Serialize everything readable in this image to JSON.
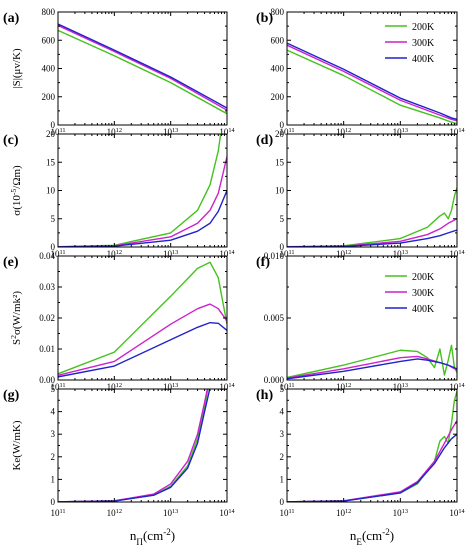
{
  "chart_data": {
    "type": "line",
    "x_scale": "log",
    "xlim": [
      100000000000.0,
      100000000000000.0
    ],
    "colors": {
      "200K": "#44c21e",
      "300K": "#cc22cc",
      "400K": "#2222cc"
    },
    "series_names": [
      "200K",
      "300K",
      "400K"
    ],
    "xlabels": {
      "left": "n_Π(cm^-2)",
      "right": "n_E(cm^-2)"
    },
    "x_ticklabels": [
      "10^11",
      "10^12",
      "10^13",
      "10^14"
    ],
    "panels": [
      {
        "label": "(a)",
        "ylabel": "|S|(μv/K)",
        "ylim": [
          0,
          800
        ],
        "yticks": [
          0,
          200,
          400,
          600,
          800
        ],
        "ytick_labels": [
          "0",
          "200",
          "400",
          "600",
          "800"
        ],
        "series": [
          {
            "name": "200K",
            "x": [
              100000000000.0,
              1000000000000.0,
              10000000000000.0,
              100000000000000.0
            ],
            "y": [
              670,
              490,
              300,
              80
            ]
          },
          {
            "name": "300K",
            "x": [
              100000000000.0,
              1000000000000.0,
              10000000000000.0,
              100000000000000.0
            ],
            "y": [
              705,
              520,
              330,
              105
            ]
          },
          {
            "name": "400K",
            "x": [
              100000000000.0,
              1000000000000.0,
              10000000000000.0,
              100000000000000.0
            ],
            "y": [
              715,
              530,
              340,
              120
            ]
          }
        ]
      },
      {
        "label": "(b)",
        "ylabel": "",
        "ylim": [
          0,
          800
        ],
        "yticks": [
          0,
          200,
          400,
          600,
          800
        ],
        "ytick_labels": [
          "0",
          "200",
          "400",
          "600",
          "800"
        ],
        "legend": "top-right",
        "series": [
          {
            "name": "200K",
            "x": [
              100000000000.0,
              1000000000000.0,
              10000000000000.0,
              50000000000000.0,
              80000000000000.0,
              100000000000000.0
            ],
            "y": [
              530,
              350,
              140,
              50,
              20,
              10
            ]
          },
          {
            "name": "300K",
            "x": [
              100000000000.0,
              1000000000000.0,
              10000000000000.0,
              50000000000000.0,
              80000000000000.0,
              100000000000000.0
            ],
            "y": [
              565,
              380,
              175,
              70,
              40,
              30
            ]
          },
          {
            "name": "400K",
            "x": [
              100000000000.0,
              1000000000000.0,
              10000000000000.0,
              50000000000000.0,
              80000000000000.0,
              100000000000000.0
            ],
            "y": [
              580,
              395,
              190,
              85,
              50,
              40
            ]
          }
        ]
      },
      {
        "label": "(c)",
        "ylabel": "σ(10^-5/Ωm)",
        "ylim": [
          0,
          20
        ],
        "yticks": [
          0,
          5,
          10,
          15,
          20
        ],
        "ytick_labels": [
          "0",
          "5",
          "10",
          "15",
          "20"
        ],
        "series": [
          {
            "name": "200K",
            "x": [
              100000000000.0,
              1000000000000.0,
              10000000000000.0,
              30000000000000.0,
              50000000000000.0,
              70000000000000.0,
              100000000000000.0
            ],
            "y": [
              0.05,
              0.3,
              2.5,
              6.5,
              11,
              17,
              28
            ]
          },
          {
            "name": "300K",
            "x": [
              100000000000.0,
              1000000000000.0,
              10000000000000.0,
              30000000000000.0,
              50000000000000.0,
              70000000000000.0,
              100000000000000.0
            ],
            "y": [
              0.04,
              0.2,
              1.8,
              4.2,
              6.5,
              9.5,
              16
            ]
          },
          {
            "name": "400K",
            "x": [
              100000000000.0,
              1000000000000.0,
              10000000000000.0,
              30000000000000.0,
              50000000000000.0,
              70000000000000.0,
              100000000000000.0
            ],
            "y": [
              0.03,
              0.15,
              1.2,
              2.8,
              4.2,
              6.3,
              10
            ]
          }
        ]
      },
      {
        "label": "(d)",
        "ylabel": "",
        "ylim": [
          0,
          20
        ],
        "yticks": [
          0,
          5,
          10,
          15,
          20
        ],
        "ytick_labels": [
          "0",
          "5",
          "10",
          "15",
          "20"
        ],
        "series": [
          {
            "name": "200K",
            "x": [
              100000000000.0,
              1000000000000.0,
              10000000000000.0,
              30000000000000.0,
              50000000000000.0,
              60000000000000.0,
              70000000000000.0,
              80000000000000.0,
              90000000000000.0,
              100000000000000.0
            ],
            "y": [
              0.05,
              0.2,
              1.5,
              3.5,
              5.5,
              6.0,
              5.0,
              6.5,
              9.0,
              10.5
            ]
          },
          {
            "name": "300K",
            "x": [
              100000000000.0,
              1000000000000.0,
              10000000000000.0,
              30000000000000.0,
              50000000000000.0,
              70000000000000.0,
              100000000000000.0
            ],
            "y": [
              0.04,
              0.15,
              1.0,
              2.2,
              3.2,
              4.2,
              5.0
            ]
          },
          {
            "name": "400K",
            "x": [
              100000000000.0,
              1000000000000.0,
              10000000000000.0,
              30000000000000.0,
              50000000000000.0,
              70000000000000.0,
              100000000000000.0
            ],
            "y": [
              0.03,
              0.1,
              0.7,
              1.5,
              2.0,
              2.5,
              3.0
            ]
          }
        ]
      },
      {
        "label": "(e)",
        "ylabel": "S²σ(W/mk²)",
        "ylim": [
          0,
          0.04
        ],
        "yticks": [
          0,
          0.01,
          0.02,
          0.03,
          0.04
        ],
        "ytick_labels": [
          "0.00",
          "0.01",
          "0.02",
          "0.03",
          "0.04"
        ],
        "series": [
          {
            "name": "200K",
            "x": [
              100000000000.0,
              1000000000000.0,
              10000000000000.0,
              30000000000000.0,
              50000000000000.0,
              70000000000000.0,
              100000000000000.0
            ],
            "y": [
              0.002,
              0.009,
              0.027,
              0.036,
              0.038,
              0.033,
              0.018
            ]
          },
          {
            "name": "300K",
            "x": [
              100000000000.0,
              1000000000000.0,
              10000000000000.0,
              30000000000000.0,
              50000000000000.0,
              70000000000000.0,
              100000000000000.0
            ],
            "y": [
              0.0015,
              0.006,
              0.018,
              0.023,
              0.0245,
              0.023,
              0.019
            ]
          },
          {
            "name": "400K",
            "x": [
              100000000000.0,
              1000000000000.0,
              10000000000000.0,
              30000000000000.0,
              50000000000000.0,
              70000000000000.0,
              100000000000000.0
            ],
            "y": [
              0.001,
              0.0045,
              0.013,
              0.017,
              0.0185,
              0.0183,
              0.016
            ]
          }
        ]
      },
      {
        "label": "(f)",
        "ylabel": "",
        "ylim": [
          0,
          0.01
        ],
        "yticks": [
          0,
          0.005,
          0.01
        ],
        "ytick_labels": [
          "0.000",
          "0.005",
          "0.010"
        ],
        "legend": "top-right",
        "series": [
          {
            "name": "200K",
            "x": [
              100000000000.0,
              1000000000000.0,
              10000000000000.0,
              20000000000000.0,
              30000000000000.0,
              40000000000000.0,
              50000000000000.0,
              60000000000000.0,
              70000000000000.0,
              80000000000000.0,
              90000000000000.0,
              100000000000000.0
            ],
            "y": [
              0.0002,
              0.0012,
              0.0024,
              0.0023,
              0.0018,
              0.001,
              0.0025,
              0.0004,
              0.0016,
              0.0028,
              0.001,
              0.0006
            ]
          },
          {
            "name": "300K",
            "x": [
              100000000000.0,
              1000000000000.0,
              10000000000000.0,
              20000000000000.0,
              30000000000000.0,
              50000000000000.0,
              70000000000000.0,
              100000000000000.0
            ],
            "y": [
              0.00015,
              0.0009,
              0.0018,
              0.0019,
              0.0017,
              0.0014,
              0.0012,
              0.0008
            ]
          },
          {
            "name": "400K",
            "x": [
              100000000000.0,
              1000000000000.0,
              10000000000000.0,
              20000000000000.0,
              30000000000000.0,
              50000000000000.0,
              70000000000000.0,
              100000000000000.0
            ],
            "y": [
              0.0001,
              0.0007,
              0.0015,
              0.0017,
              0.0016,
              0.0014,
              0.0012,
              0.0009
            ]
          }
        ]
      },
      {
        "label": "(g)",
        "ylabel": "Ke(W/mK)",
        "ylim": [
          0,
          5
        ],
        "yticks": [
          0,
          1,
          2,
          3,
          4,
          5
        ],
        "ytick_labels": [
          "0",
          "1",
          "2",
          "3",
          "4",
          "5"
        ],
        "series": [
          {
            "name": "200K",
            "x": [
              100000000000.0,
              1000000000000.0,
              5000000000000.0,
              10000000000000.0,
              20000000000000.0,
              30000000000000.0,
              40000000000000.0,
              50000000000000.0
            ],
            "y": [
              0.01,
              0.05,
              0.3,
              0.7,
              1.6,
              2.8,
              4.2,
              5.5
            ]
          },
          {
            "name": "300K",
            "x": [
              100000000000.0,
              1000000000000.0,
              5000000000000.0,
              10000000000000.0,
              20000000000000.0,
              30000000000000.0,
              40000000000000.0,
              50000000000000.0
            ],
            "y": [
              0.01,
              0.05,
              0.35,
              0.8,
              1.8,
              3.0,
              4.4,
              5.6
            ]
          },
          {
            "name": "400K",
            "x": [
              100000000000.0,
              1000000000000.0,
              5000000000000.0,
              10000000000000.0,
              20000000000000.0,
              30000000000000.0,
              40000000000000.0,
              55000000000000.0
            ],
            "y": [
              0.01,
              0.04,
              0.3,
              0.65,
              1.5,
              2.6,
              4.0,
              5.5
            ]
          }
        ]
      },
      {
        "label": "(h)",
        "ylabel": "",
        "ylim": [
          0,
          5
        ],
        "yticks": [
          0,
          1,
          2,
          3,
          4,
          5
        ],
        "ytick_labels": [
          "0",
          "1",
          "2",
          "3",
          "4",
          "5"
        ],
        "series": [
          {
            "name": "200K",
            "x": [
              100000000000.0,
              1000000000000.0,
              10000000000000.0,
              20000000000000.0,
              40000000000000.0,
              50000000000000.0,
              60000000000000.0,
              70000000000000.0,
              80000000000000.0,
              90000000000000.0,
              100000000000000.0
            ],
            "y": [
              0.01,
              0.05,
              0.4,
              0.8,
              1.8,
              2.7,
              2.9,
              2.6,
              3.5,
              4.5,
              4.9
            ]
          },
          {
            "name": "300K",
            "x": [
              100000000000.0,
              1000000000000.0,
              10000000000000.0,
              20000000000000.0,
              40000000000000.0,
              60000000000000.0,
              80000000000000.0,
              100000000000000.0
            ],
            "y": [
              0.01,
              0.05,
              0.45,
              0.9,
              1.8,
              2.6,
              3.2,
              3.6
            ]
          },
          {
            "name": "400K",
            "x": [
              100000000000.0,
              1000000000000.0,
              10000000000000.0,
              20000000000000.0,
              40000000000000.0,
              60000000000000.0,
              80000000000000.0,
              100000000000000.0
            ],
            "y": [
              0.01,
              0.04,
              0.4,
              0.85,
              1.7,
              2.4,
              2.8,
              3.0
            ]
          }
        ]
      }
    ]
  }
}
